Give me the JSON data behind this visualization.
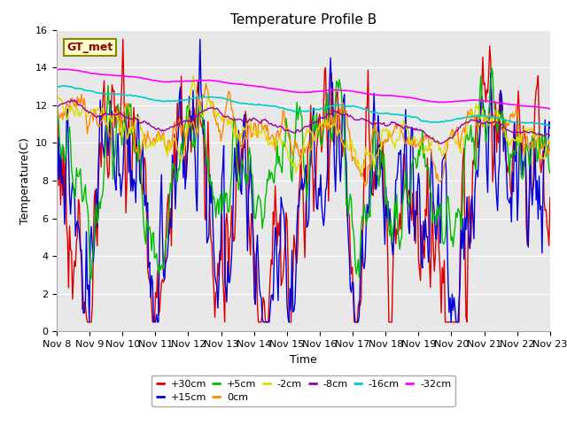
{
  "title": "Temperature Profile B",
  "xlabel": "Time",
  "ylabel": "Temperature(C)",
  "ylim": [
    0,
    16
  ],
  "xlim": [
    0,
    15
  ],
  "x_tick_labels": [
    "Nov 8",
    "Nov 9",
    "Nov 10",
    "Nov 11",
    "Nov 12",
    "Nov 13",
    "Nov 14",
    "Nov 15",
    "Nov 16",
    "Nov 17",
    "Nov 18",
    "Nov 19",
    "Nov 20",
    "Nov 21",
    "Nov 22",
    "Nov 23"
  ],
  "plot_bg_color": "#e8e8e8",
  "series": [
    {
      "label": "+30cm",
      "color": "#dd0000",
      "linewidth": 1.0
    },
    {
      "label": "+15cm",
      "color": "#0000dd",
      "linewidth": 1.0
    },
    {
      "label": "+5cm",
      "color": "#00bb00",
      "linewidth": 1.0
    },
    {
      "label": "0cm",
      "color": "#ff8800",
      "linewidth": 1.0
    },
    {
      "label": "-2cm",
      "color": "#dddd00",
      "linewidth": 1.0
    },
    {
      "label": "-8cm",
      "color": "#9900aa",
      "linewidth": 1.0
    },
    {
      "label": "-16cm",
      "color": "#00cccc",
      "linewidth": 1.2
    },
    {
      "label": "-32cm",
      "color": "#ff00ff",
      "linewidth": 1.2
    }
  ],
  "legend_label": "GT_met",
  "legend_bg": "#ffffcc",
  "legend_border": "#888800",
  "title_fontsize": 11,
  "axis_fontsize": 9,
  "tick_fontsize": 8
}
